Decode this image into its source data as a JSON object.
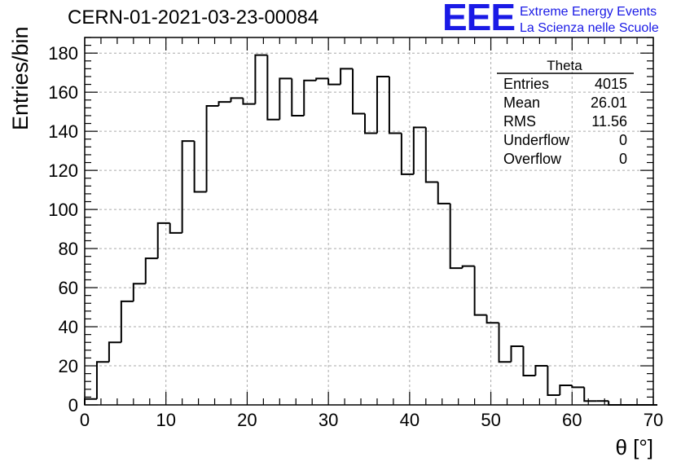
{
  "header": {
    "run_title": "CERN-01-2021-03-23-00084",
    "logo_mark": "EEE",
    "logo_line1": "Extreme Energy Events",
    "logo_line2": "La Scienza nelle Scuole"
  },
  "stats": {
    "title": "Theta",
    "rows": [
      {
        "label": "Entries",
        "value": "4015"
      },
      {
        "label": "Mean",
        "value": "26.01"
      },
      {
        "label": "RMS",
        "value": "11.56"
      },
      {
        "label": "Underflow",
        "value": "0"
      },
      {
        "label": "Overflow",
        "value": "0"
      }
    ]
  },
  "colors": {
    "logo": "#1a1ae6",
    "histogram": "#000000",
    "grid": "#aaaaaa"
  },
  "chart_data": {
    "type": "bar",
    "subtype": "step histogram",
    "title": "CERN-01-2021-03-23-00084",
    "xlabel": "θ [°]",
    "ylabel": "Entries/bin",
    "xlim": [
      0,
      70
    ],
    "ylim": [
      0,
      188
    ],
    "grid": true,
    "legend": "none",
    "bin_width": 1.5,
    "bin_edges_start": 0,
    "values": [
      3,
      22,
      32,
      53,
      62,
      75,
      93,
      88,
      135,
      109,
      153,
      155,
      157,
      154,
      179,
      146,
      167,
      148,
      166,
      167,
      164,
      172,
      149,
      139,
      168,
      139,
      118,
      142,
      114,
      103,
      70,
      71,
      46,
      42,
      22,
      30,
      15,
      20,
      5,
      10,
      9,
      2,
      2,
      0,
      0,
      0,
      0
    ],
    "x_ticks": [
      "0",
      "10",
      "20",
      "30",
      "40",
      "50",
      "60",
      "70"
    ],
    "y_ticks": [
      "0",
      "20",
      "40",
      "60",
      "80",
      "100",
      "120",
      "140",
      "160",
      "180"
    ]
  }
}
